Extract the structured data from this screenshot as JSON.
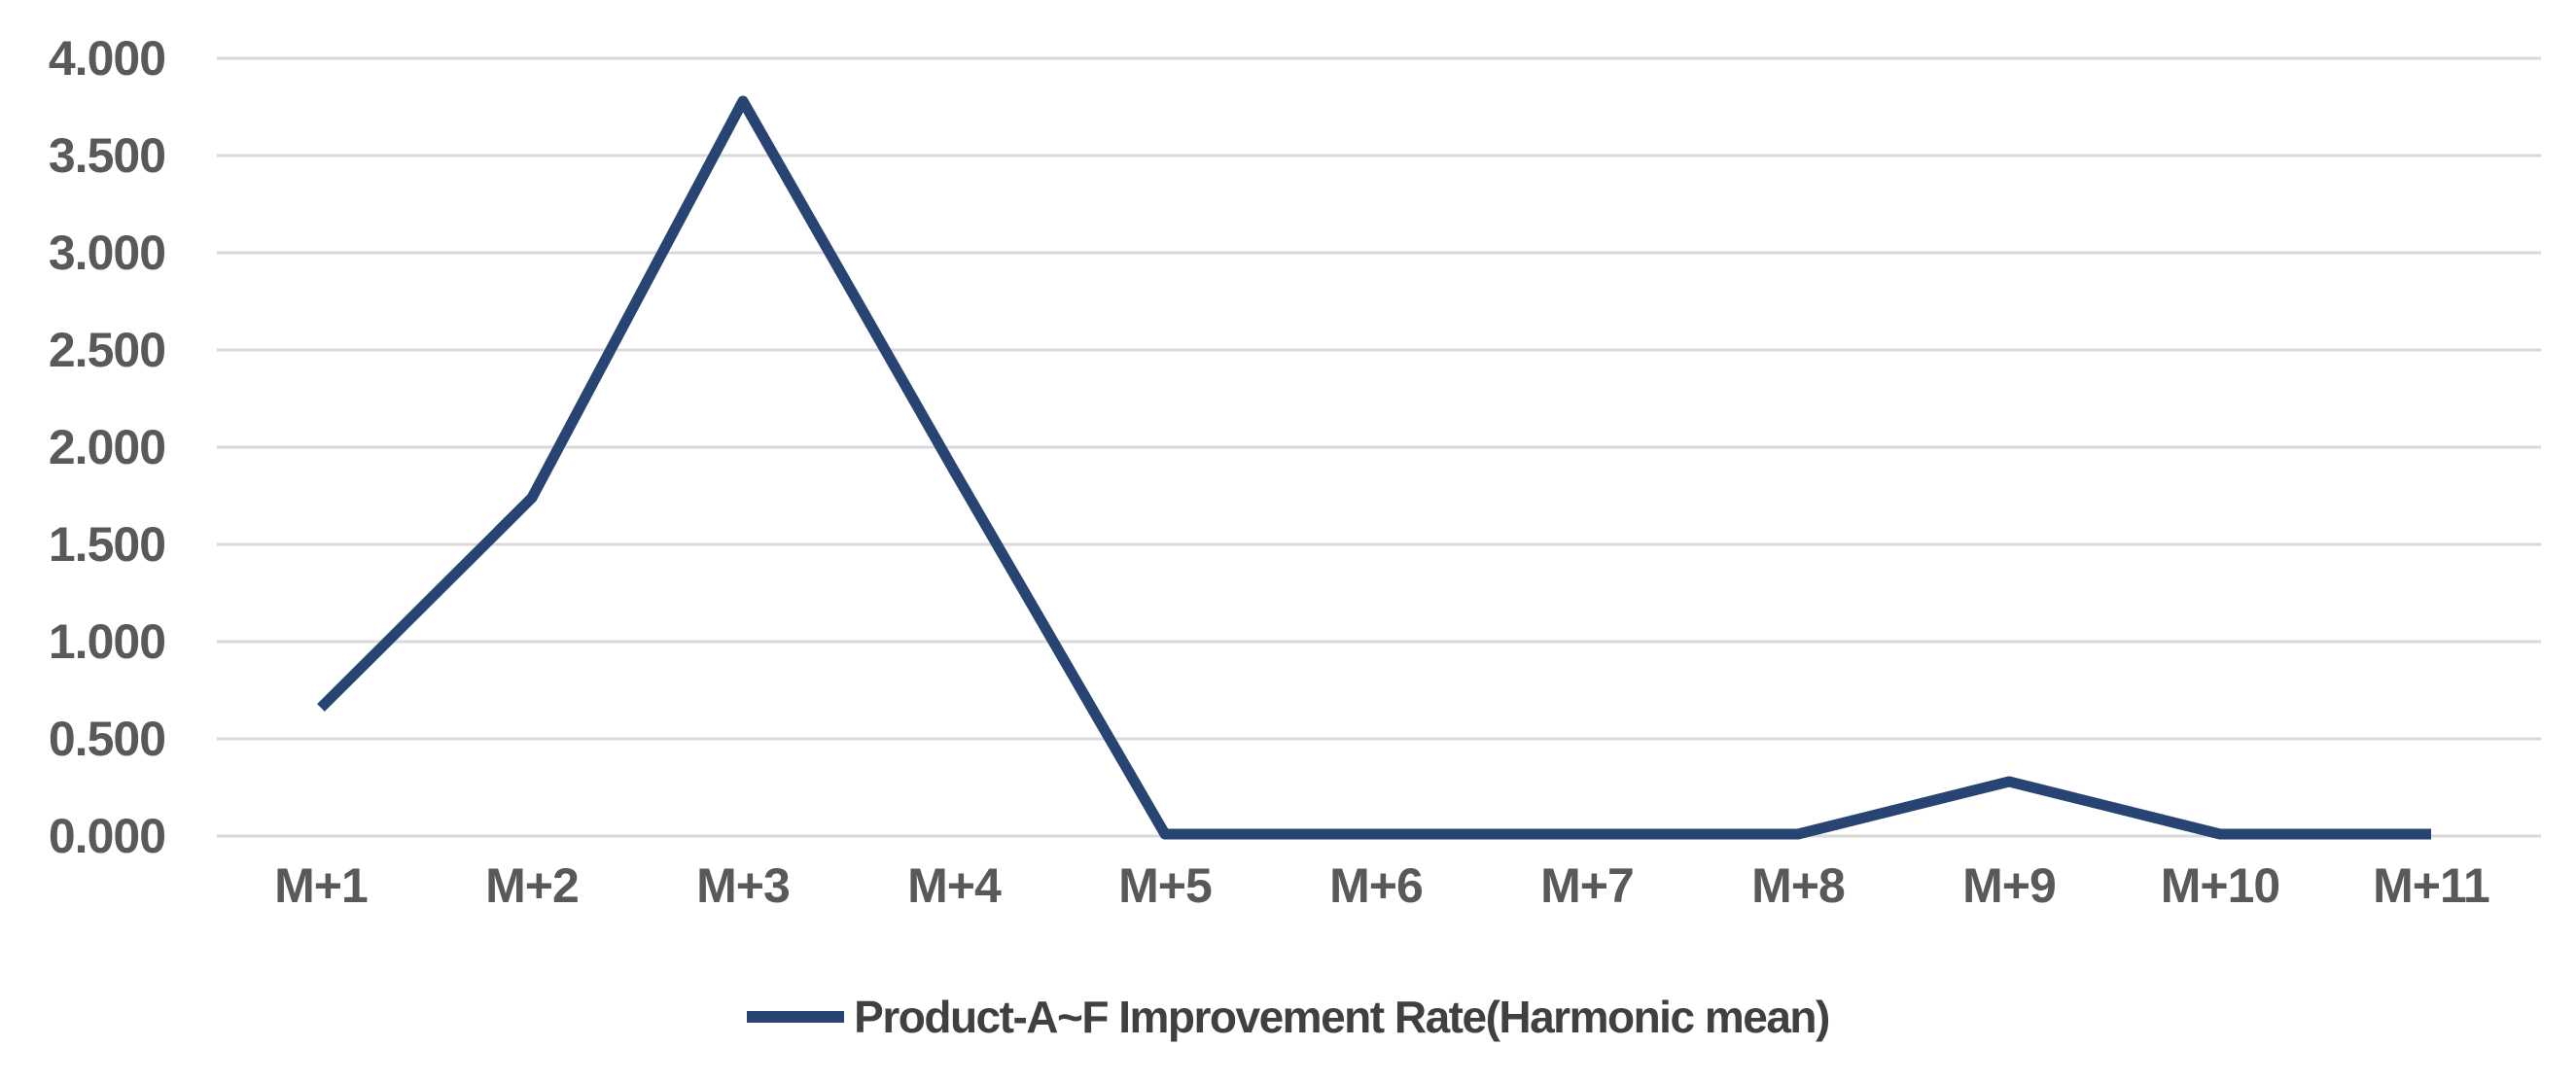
{
  "chart_data": {
    "type": "line",
    "title": "",
    "xlabel": "",
    "ylabel": "",
    "categories": [
      "M+1",
      "M+2",
      "M+3",
      "M+4",
      "M+5",
      "M+6",
      "M+7",
      "M+8",
      "M+9",
      "M+10",
      "M+11"
    ],
    "series": [
      {
        "name": "Product-A~F Improvement Rate(Harmonic mean)",
        "values": [
          0.66,
          1.74,
          3.78,
          1.88,
          0.01,
          0.01,
          0.01,
          0.01,
          0.28,
          0.01,
          0.01
        ]
      }
    ],
    "ylim": [
      0,
      4
    ],
    "y_tick_step": 0.5,
    "y_tick_labels": [
      "0.000",
      "0.500",
      "1.000",
      "1.500",
      "2.000",
      "2.500",
      "3.000",
      "3.500",
      "4.000"
    ],
    "grid": "horizontal",
    "legend_position": "bottom",
    "colors": {
      "series": "#274472",
      "gridline": "#D9D9D9",
      "tick_label": "#595959",
      "legend_text": "#404040",
      "background": "#FFFFFF"
    }
  },
  "legend": {
    "label": "Product-A~F Improvement Rate(Harmonic mean)"
  }
}
